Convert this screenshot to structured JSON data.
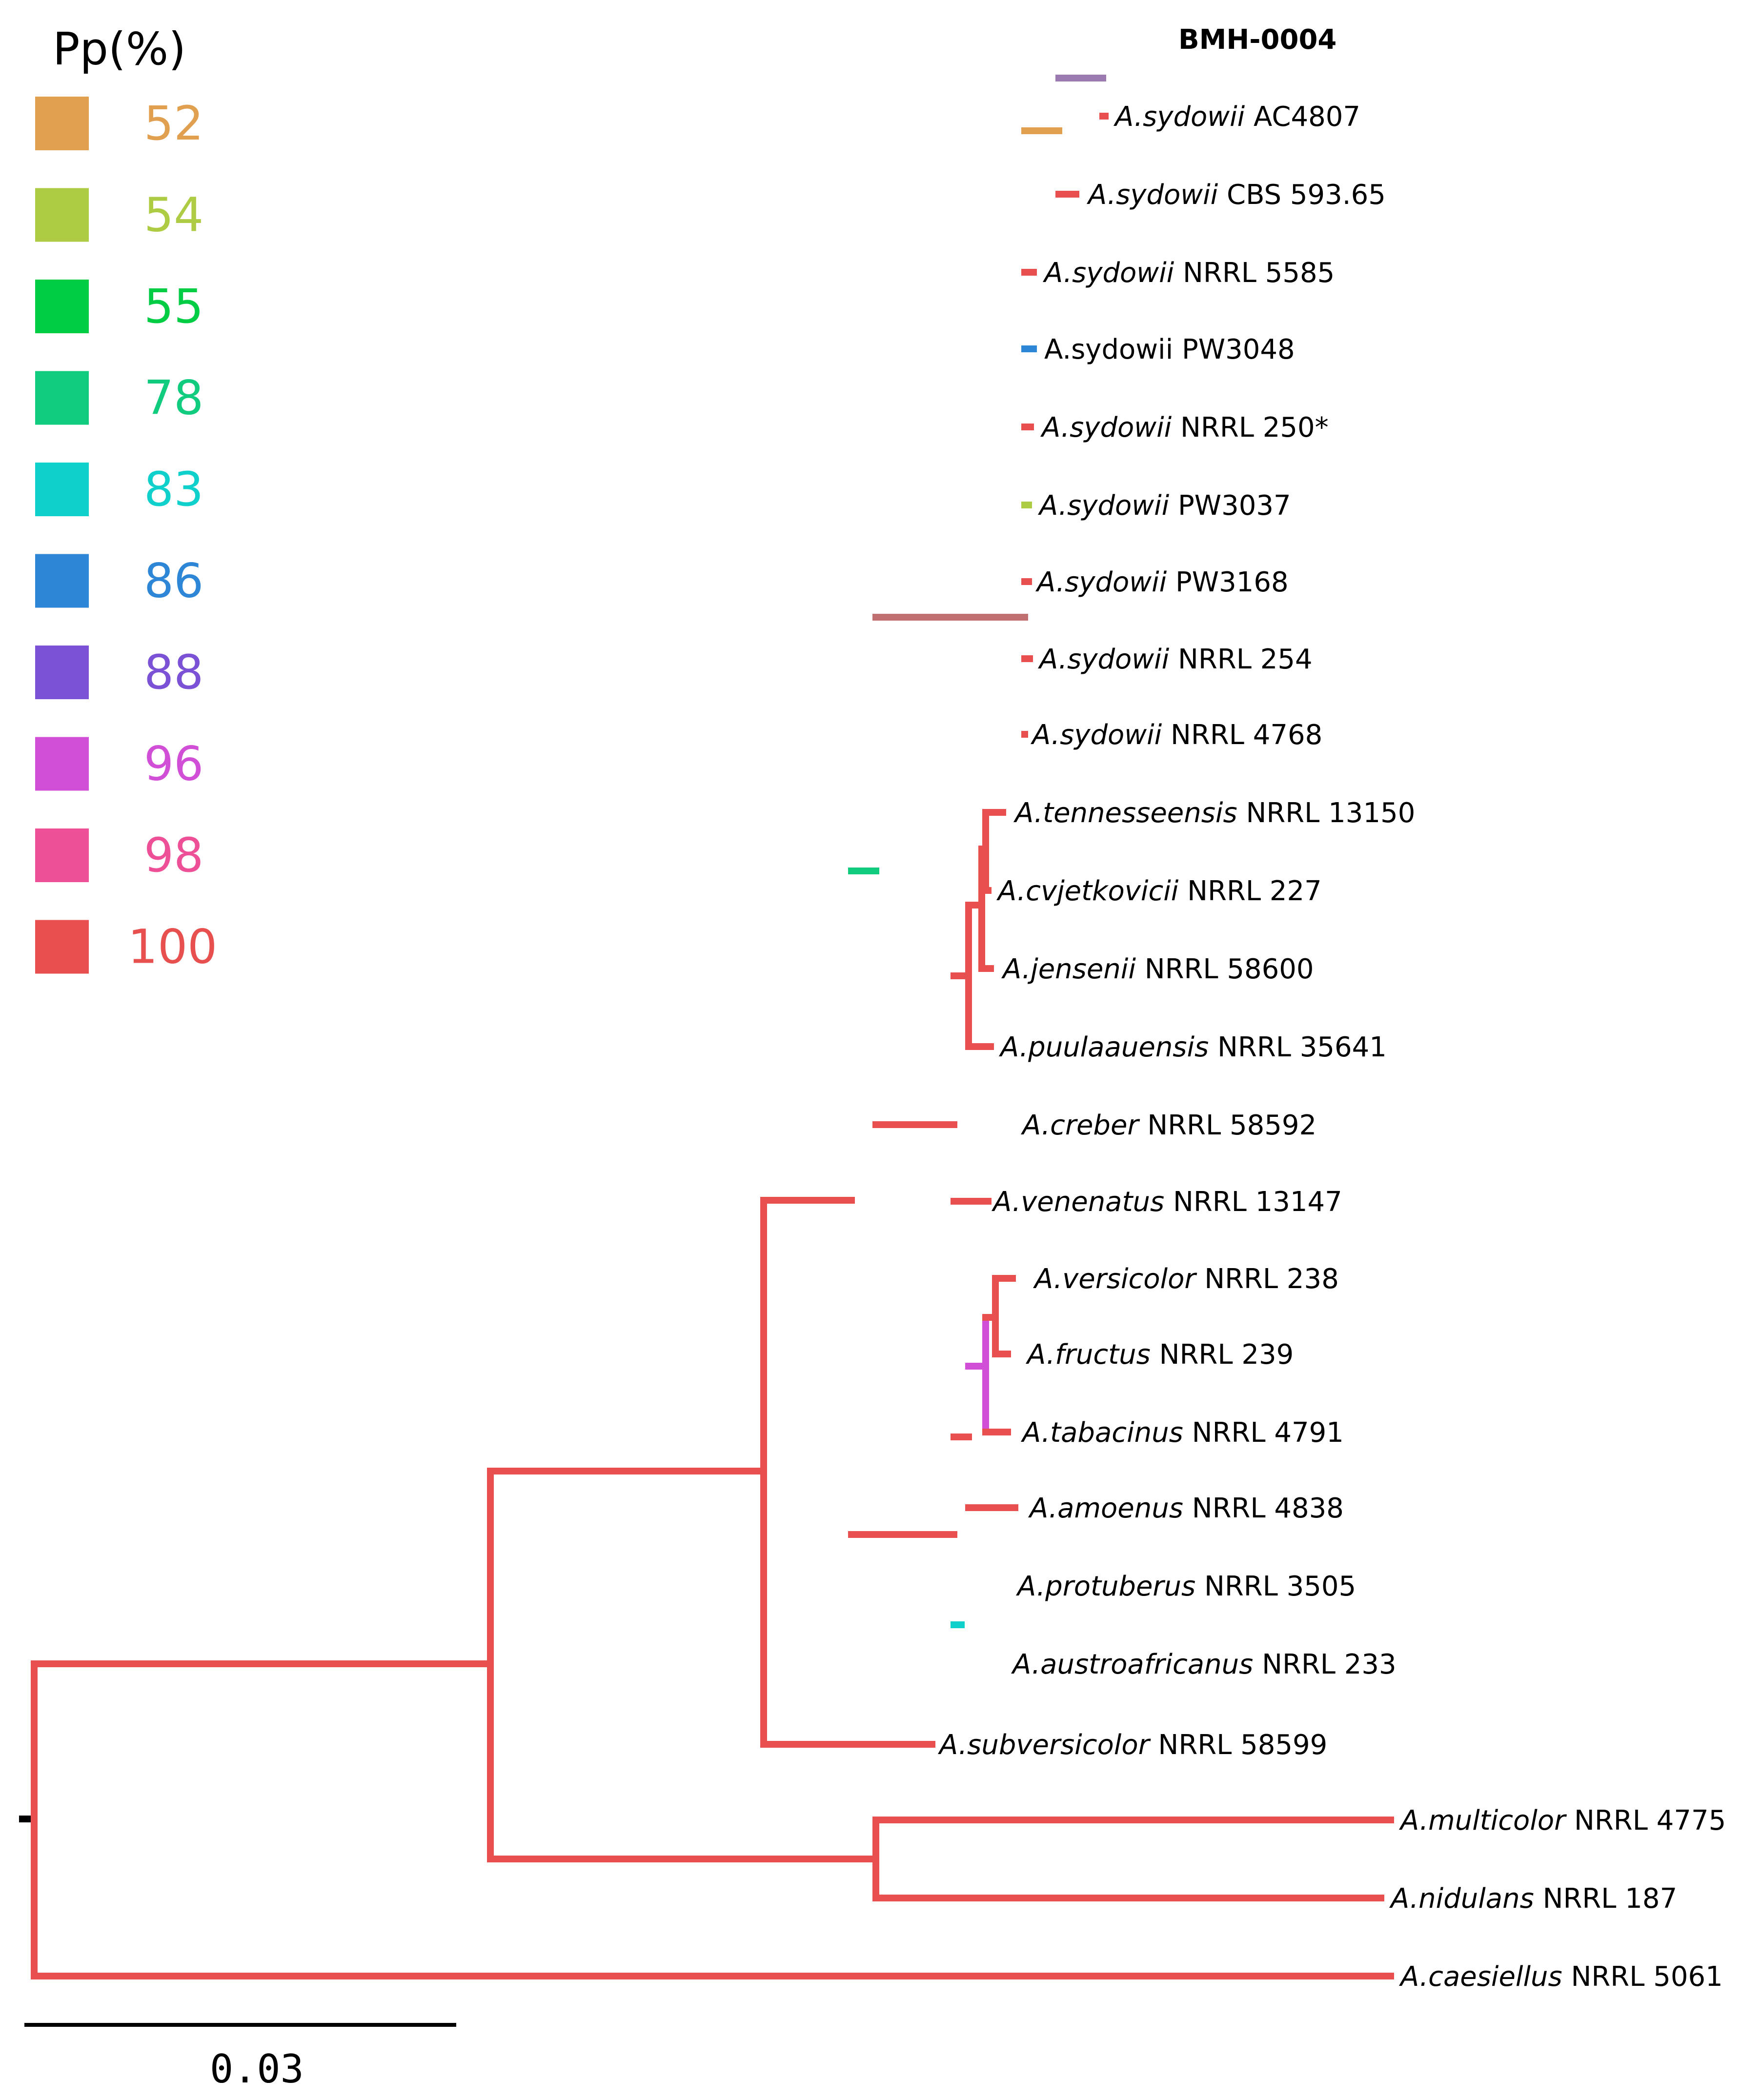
{
  "legend": {
    "title": "Pp(%)",
    "items": [
      {
        "value": "52",
        "color": "#E0A050"
      },
      {
        "value": "54",
        "color": "#AECB44"
      },
      {
        "value": "55",
        "color": "#00CC44"
      },
      {
        "value": "78",
        "color": "#11CC7E"
      },
      {
        "value": "83",
        "color": "#10D0CC"
      },
      {
        "value": "86",
        "color": "#2E86D6"
      },
      {
        "value": "88",
        "color": "#7B52D6"
      },
      {
        "value": "96",
        "color": "#D14FD6"
      },
      {
        "value": "98",
        "color": "#EE5098"
      },
      {
        "value": "100",
        "color": "#E85050"
      }
    ]
  },
  "leaves": [
    {
      "id": "L1",
      "species": "",
      "strain": "BMH-0004",
      "bold": true
    },
    {
      "id": "L2",
      "species": "A.sydowii",
      "strain": "AC4807"
    },
    {
      "id": "L3",
      "species": "A.sydowii",
      "strain": "CBS 593.65"
    },
    {
      "id": "L4",
      "species": "A.sydowii",
      "strain": "NRRL 5585"
    },
    {
      "id": "L5",
      "species": "",
      "strain": "A.sydowii PW3048"
    },
    {
      "id": "L6",
      "species": "A.sydowii",
      "strain": "NRRL 250*"
    },
    {
      "id": "L7",
      "species": "A.sydowii",
      "strain": "PW3037"
    },
    {
      "id": "L8",
      "species": "A.sydowii",
      "strain": "PW3168"
    },
    {
      "id": "L9",
      "species": "A.sydowii",
      "strain": "NRRL 254"
    },
    {
      "id": "L10",
      "species": "A.sydowii",
      "strain": "NRRL 4768"
    },
    {
      "id": "L11",
      "species": "A.tennesseensis",
      "strain": "NRRL 13150"
    },
    {
      "id": "L12",
      "species": "A.cvjetkovicii",
      "strain": "NRRL 227"
    },
    {
      "id": "L13",
      "species": "A.jensenii",
      "strain": "NRRL 58600"
    },
    {
      "id": "L14",
      "species": "A.puulaauensis",
      "strain": "NRRL 35641"
    },
    {
      "id": "L15",
      "species": "A.creber",
      "strain": "NRRL 58592"
    },
    {
      "id": "L16",
      "species": "A.venenatus",
      "strain": "NRRL 13147"
    },
    {
      "id": "L17",
      "species": "A.versicolor",
      "strain": "NRRL 238"
    },
    {
      "id": "L18",
      "species": "A.fructus",
      "strain": "NRRL 239"
    },
    {
      "id": "L19",
      "species": "A.tabacinus",
      "strain": "NRRL 4791"
    },
    {
      "id": "L20",
      "species": "A.amoenus",
      "strain": "NRRL 4838"
    },
    {
      "id": "L21",
      "species": "A.protuberus",
      "strain": "NRRL 3505"
    },
    {
      "id": "L22",
      "species": "A.austroafricanus",
      "strain": "NRRL 233"
    },
    {
      "id": "L23",
      "species": "A.subversicolor",
      "strain": "NRRL 58599"
    },
    {
      "id": "L24",
      "species": "A.multicolor",
      "strain": "NRRL 4775"
    },
    {
      "id": "L25",
      "species": "A.nidulans",
      "strain": "NRRL 187"
    },
    {
      "id": "L26",
      "species": "A.caesiellus",
      "strain": "NRRL 5061"
    }
  ],
  "scale_bar": {
    "label": "0.03"
  }
}
